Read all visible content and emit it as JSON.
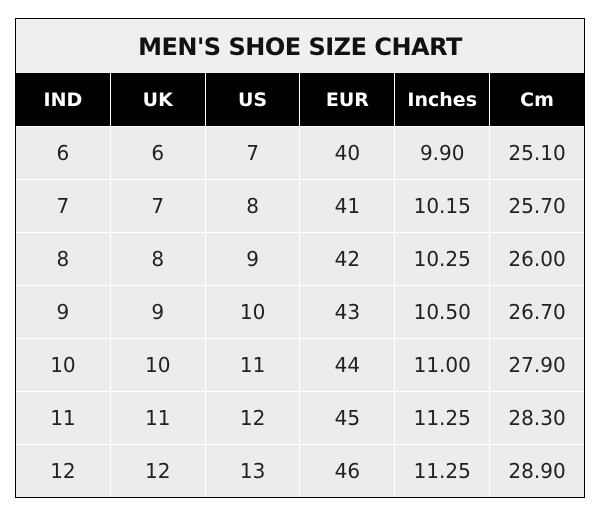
{
  "title": "MEN'S SHOE SIZE CHART",
  "headers": [
    "IND",
    "UK",
    "US",
    "EUR",
    "Inches",
    "Cm"
  ],
  "rows": [
    [
      "6",
      "6",
      "7",
      "40",
      "9.90",
      "25.10"
    ],
    [
      "7",
      "7",
      "8",
      "41",
      "10.15",
      "25.70"
    ],
    [
      "8",
      "8",
      "9",
      "42",
      "10.25",
      "26.00"
    ],
    [
      "9",
      "9",
      "10",
      "43",
      "10.50",
      "26.70"
    ],
    [
      "10",
      "10",
      "11",
      "44",
      "11.00",
      "27.90"
    ],
    [
      "11",
      "11",
      "12",
      "45",
      "11.25",
      "28.30"
    ],
    [
      "12",
      "12",
      "13",
      "46",
      "11.25",
      "28.90"
    ]
  ],
  "colors": {
    "header_bg": "#000000",
    "header_text": "#ffffff",
    "cell_bg": "#ececec",
    "grid": "#ffffff",
    "border": "#000000"
  }
}
